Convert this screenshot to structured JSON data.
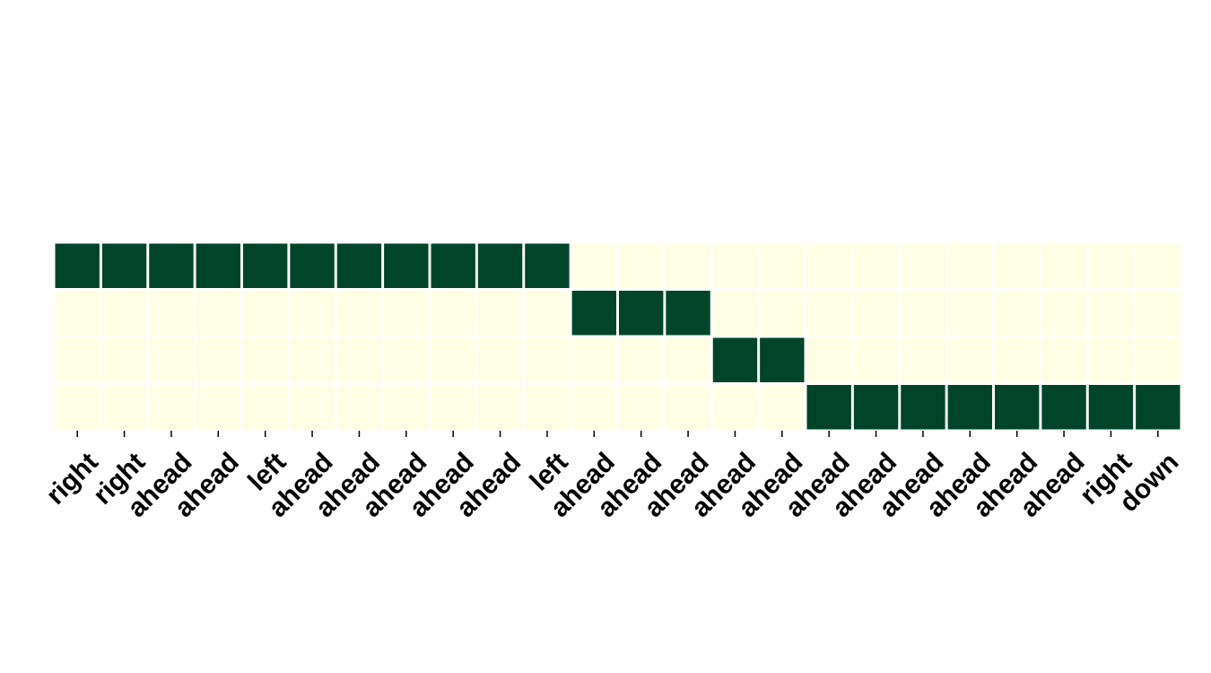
{
  "chart_data": {
    "type": "heatmap",
    "title": "",
    "xlabel": "",
    "ylabel": "",
    "x_categories": [
      "right",
      "right",
      "ahead",
      "ahead",
      "left",
      "ahead",
      "ahead",
      "ahead",
      "ahead",
      "ahead",
      "left",
      "ahead",
      "ahead",
      "ahead",
      "ahead",
      "ahead",
      "ahead",
      "ahead",
      "ahead",
      "ahead",
      "ahead",
      "ahead",
      "right",
      "down"
    ],
    "y_categories": [],
    "values": [
      [
        1,
        1,
        1,
        1,
        1,
        1,
        1,
        1,
        1,
        1,
        1,
        0,
        0,
        0,
        0,
        0,
        0,
        0,
        0,
        0,
        0,
        0,
        0,
        0
      ],
      [
        0,
        0,
        0,
        0,
        0,
        0,
        0,
        0,
        0,
        0,
        0,
        1,
        1,
        1,
        0,
        0,
        0,
        0,
        0,
        0,
        0,
        0,
        0,
        0
      ],
      [
        0,
        0,
        0,
        0,
        0,
        0,
        0,
        0,
        0,
        0,
        0,
        0,
        0,
        0,
        1,
        1,
        0,
        0,
        0,
        0,
        0,
        0,
        0,
        0
      ],
      [
        0,
        0,
        0,
        0,
        0,
        0,
        0,
        0,
        0,
        0,
        0,
        0,
        0,
        0,
        0,
        0,
        1,
        1,
        1,
        1,
        1,
        1,
        1,
        1
      ]
    ],
    "colormap": {
      "low": "#ffffe5",
      "high": "#004529"
    },
    "grid": false,
    "colorbar": false
  }
}
